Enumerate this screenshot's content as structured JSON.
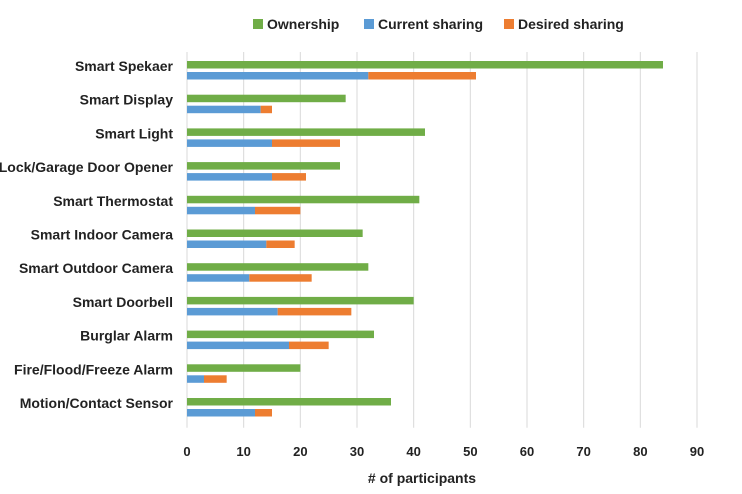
{
  "chart_data": {
    "type": "bar",
    "orientation": "horizontal",
    "stacked_groups": [
      [
        "Current sharing",
        "Desired sharing"
      ]
    ],
    "title": "",
    "xlabel": "# of participants",
    "ylabel": "",
    "xlim": [
      0,
      90
    ],
    "xticks": [
      0,
      10,
      20,
      30,
      40,
      50,
      60,
      70,
      80,
      90
    ],
    "grid": true,
    "legend_position": "top",
    "categories": [
      "Smart Spekaer",
      "Smart Display",
      "Smart Light",
      "Lock/Garage Door Opener",
      "Smart Thermostat",
      "Smart Indoor Camera",
      "Smart Outdoor Camera",
      "Smart Doorbell",
      "Burglar Alarm",
      "Fire/Flood/Freeze Alarm",
      "Motion/Contact Sensor"
    ],
    "series": [
      {
        "name": "Ownership",
        "color": "#70ad47",
        "values": [
          84,
          28,
          42,
          27,
          41,
          31,
          32,
          40,
          33,
          20,
          36
        ]
      },
      {
        "name": "Current sharing",
        "color": "#5b9bd5",
        "values": [
          32,
          13,
          15,
          15,
          12,
          14,
          11,
          16,
          18,
          3,
          12
        ]
      },
      {
        "name": "Desired sharing",
        "color": "#ed7d31",
        "values": [
          19,
          2,
          12,
          6,
          8,
          5,
          11,
          13,
          7,
          4,
          3
        ]
      }
    ]
  }
}
